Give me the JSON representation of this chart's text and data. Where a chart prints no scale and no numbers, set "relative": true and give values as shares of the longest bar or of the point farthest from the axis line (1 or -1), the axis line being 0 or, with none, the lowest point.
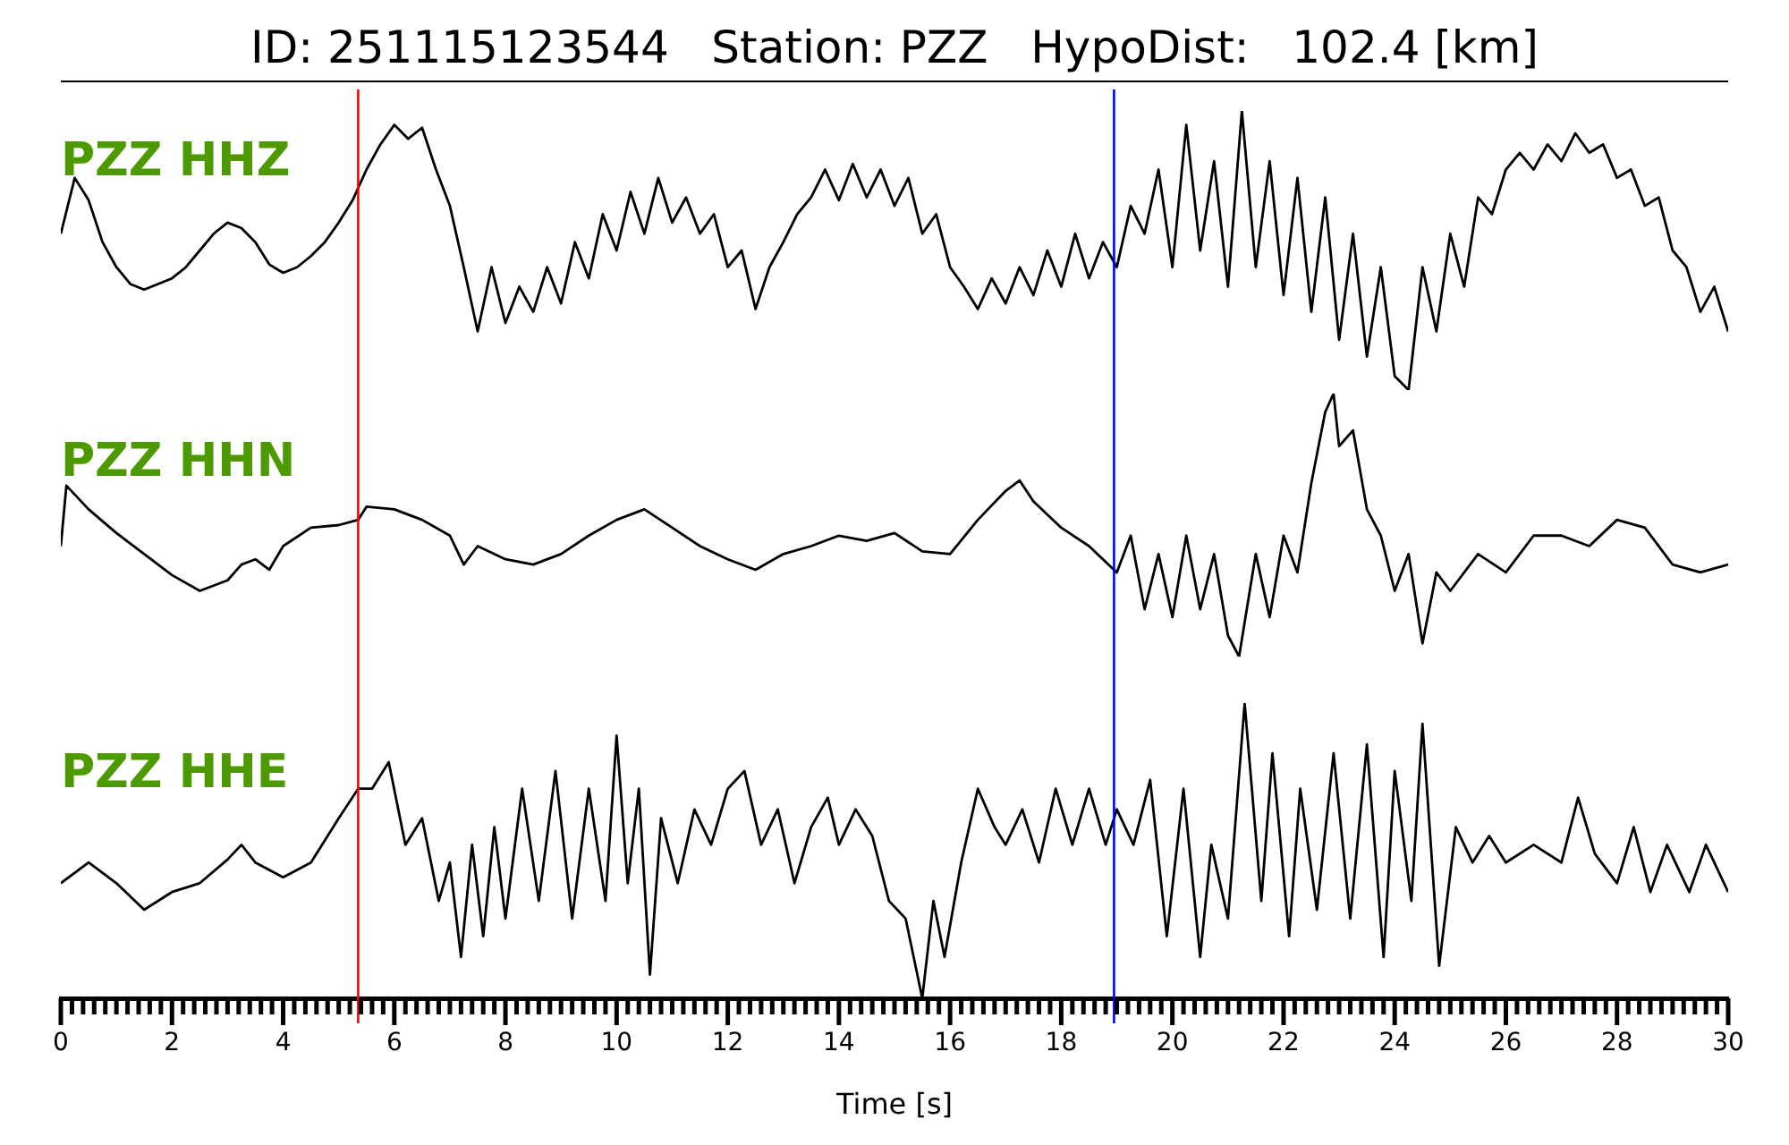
{
  "chart_data": [
    {
      "type": "line",
      "title": "ID: 251115123544   Station: PZZ   HypoDist:   102.4 [km]",
      "relative": true,
      "tick_labels": false,
      "xlim": [
        0,
        30
      ],
      "x": [
        0,
        0.25,
        0.5,
        0.75,
        1,
        1.25,
        1.5,
        1.75,
        2,
        2.25,
        2.5,
        2.75,
        3,
        3.25,
        3.5,
        3.75,
        4,
        4.25,
        4.5,
        4.75,
        5,
        5.25,
        5.5,
        5.75,
        6,
        6.25,
        6.5,
        6.75,
        7,
        7.25,
        7.5,
        7.75,
        8,
        8.25,
        8.5,
        8.75,
        9,
        9.25,
        9.5,
        9.75,
        10,
        10.25,
        10.5,
        10.75,
        11,
        11.25,
        11.5,
        11.75,
        12,
        12.25,
        12.5,
        12.75,
        13,
        13.25,
        13.5,
        13.75,
        14,
        14.25,
        14.5,
        14.75,
        15,
        15.25,
        15.5,
        15.75,
        16,
        16.25,
        16.5,
        16.75,
        17,
        17.25,
        17.5,
        17.75,
        18,
        18.25,
        18.5,
        18.75,
        19,
        19.25,
        19.5,
        19.75,
        20,
        20.25,
        20.5,
        20.75,
        21,
        21.25,
        21.5,
        21.75,
        22,
        22.25,
        22.5,
        22.75,
        23,
        23.25,
        23.5,
        23.75,
        24,
        24.25,
        24.5,
        24.75,
        25,
        25.25,
        25.5,
        25.75,
        26,
        26.25,
        26.5,
        26.75,
        27,
        27.25,
        27.5,
        27.75,
        28,
        28.25,
        28.5,
        28.75,
        29,
        29.25,
        29.5,
        29.75,
        30
      ],
      "series": [
        {
          "name": "PZZ HHZ",
          "color": "#000000",
          "values": [
            0.56,
            0.76,
            0.68,
            0.53,
            0.44,
            0.38,
            0.36,
            0.38,
            0.4,
            0.44,
            0.5,
            0.56,
            0.6,
            0.58,
            0.53,
            0.45,
            0.42,
            0.44,
            0.48,
            0.53,
            0.6,
            0.68,
            0.79,
            0.88,
            0.95,
            0.9,
            0.94,
            0.79,
            0.66,
            0.44,
            0.21,
            0.44,
            0.24,
            0.37,
            0.28,
            0.44,
            0.31,
            0.53,
            0.4,
            0.63,
            0.5,
            0.71,
            0.56,
            0.76,
            0.6,
            0.69,
            0.56,
            0.63,
            0.44,
            0.5,
            0.29,
            0.44,
            0.53,
            0.63,
            0.69,
            0.79,
            0.68,
            0.81,
            0.69,
            0.79,
            0.66,
            0.76,
            0.56,
            0.63,
            0.44,
            0.37,
            0.29,
            0.4,
            0.31,
            0.44,
            0.34,
            0.5,
            0.37,
            0.56,
            0.4,
            0.53,
            0.44,
            0.66,
            0.56,
            0.79,
            0.44,
            0.95,
            0.5,
            0.82,
            0.37,
            1,
            0.44,
            0.82,
            0.34,
            0.76,
            0.28,
            0.69,
            0.18,
            0.56,
            0.12,
            0.44,
            0.05,
            0,
            0.44,
            0.21,
            0.56,
            0.37,
            0.69,
            0.63,
            0.79,
            0.85,
            0.79,
            0.88,
            0.82,
            0.92,
            0.85,
            0.88,
            0.76,
            0.79,
            0.66,
            0.69,
            0.5,
            0.44,
            0.28,
            0.37,
            0.21
          ]
        }
      ],
      "ref_lines": [
        {
          "axis": "x",
          "value": 5.35,
          "color": "#ff0000"
        },
        {
          "axis": "x",
          "value": 18.95,
          "color": "#0000ff"
        }
      ]
    },
    {
      "type": "line",
      "relative": true,
      "tick_labels": false,
      "xlim": [
        0,
        30
      ],
      "x": [
        0,
        0.1,
        0.5,
        1,
        1.5,
        2,
        2.5,
        3,
        3.25,
        3.5,
        3.75,
        4,
        4.5,
        5,
        5.35,
        5.5,
        6,
        6.5,
        7,
        7.25,
        7.5,
        8,
        8.5,
        9,
        9.5,
        10,
        10.5,
        11,
        11.5,
        12,
        12.5,
        13,
        13.5,
        14,
        14.5,
        15,
        15.5,
        16,
        16.5,
        17,
        17.25,
        17.5,
        18,
        18.5,
        19,
        19.25,
        19.5,
        19.75,
        20,
        20.25,
        20.5,
        20.75,
        21,
        21.2,
        21.5,
        21.75,
        22,
        22.25,
        22.5,
        22.75,
        22.9,
        23,
        23.25,
        23.5,
        23.75,
        24,
        24.25,
        24.5,
        24.75,
        25,
        25.5,
        26,
        26.5,
        27,
        27.5,
        28,
        28.5,
        29,
        29.5,
        30
      ],
      "series": [
        {
          "name": "PZZ HHN",
          "color": "#000000",
          "values": [
            0.42,
            0.65,
            0.56,
            0.47,
            0.39,
            0.31,
            0.25,
            0.29,
            0.35,
            0.37,
            0.33,
            0.42,
            0.49,
            0.5,
            0.52,
            0.57,
            0.56,
            0.52,
            0.46,
            0.35,
            0.42,
            0.37,
            0.35,
            0.39,
            0.46,
            0.52,
            0.56,
            0.49,
            0.42,
            0.37,
            0.33,
            0.39,
            0.42,
            0.46,
            0.44,
            0.47,
            0.4,
            0.39,
            0.52,
            0.63,
            0.67,
            0.59,
            0.49,
            0.42,
            0.32,
            0.46,
            0.18,
            0.39,
            0.15,
            0.46,
            0.18,
            0.39,
            0.08,
            0,
            0.39,
            0.15,
            0.46,
            0.32,
            0.66,
            0.93,
            1,
            0.8,
            0.86,
            0.56,
            0.46,
            0.25,
            0.39,
            0.05,
            0.32,
            0.25,
            0.39,
            0.32,
            0.46,
            0.46,
            0.42,
            0.52,
            0.49,
            0.35,
            0.32,
            0.35
          ]
        }
      ],
      "ref_lines": [
        {
          "axis": "x",
          "value": 5.35,
          "color": "#ff0000"
        },
        {
          "axis": "x",
          "value": 18.95,
          "color": "#0000ff"
        }
      ]
    },
    {
      "type": "line",
      "relative": true,
      "xlabel": "Time [s]",
      "xlim": [
        0,
        30
      ],
      "xticks": [
        0,
        {
          "value": 0.2,
          "label": null
        },
        {
          "value": 0.4,
          "label": null
        },
        {
          "value": 0.6,
          "label": null
        },
        {
          "value": 0.8,
          "label": null
        },
        {
          "value": 1,
          "label": null
        },
        {
          "value": 1.2,
          "label": null
        },
        {
          "value": 1.4,
          "label": null
        },
        {
          "value": 1.6,
          "label": null
        },
        {
          "value": 1.8,
          "label": null
        },
        2,
        {
          "value": 2.2,
          "label": null
        },
        {
          "value": 2.4,
          "label": null
        },
        {
          "value": 2.6,
          "label": null
        },
        {
          "value": 2.8,
          "label": null
        },
        {
          "value": 3,
          "label": null
        },
        {
          "value": 3.2,
          "label": null
        },
        {
          "value": 3.4,
          "label": null
        },
        {
          "value": 3.6,
          "label": null
        },
        {
          "value": 3.8,
          "label": null
        },
        4,
        {
          "value": 4.2,
          "label": null
        },
        {
          "value": 4.4,
          "label": null
        },
        {
          "value": 4.6,
          "label": null
        },
        {
          "value": 4.8,
          "label": null
        },
        {
          "value": 5,
          "label": null
        },
        {
          "value": 5.2,
          "label": null
        },
        {
          "value": 5.4,
          "label": null
        },
        {
          "value": 5.6,
          "label": null
        },
        {
          "value": 5.8,
          "label": null
        },
        6,
        {
          "value": 6.2,
          "label": null
        },
        {
          "value": 6.4,
          "label": null
        },
        {
          "value": 6.6,
          "label": null
        },
        {
          "value": 6.8,
          "label": null
        },
        {
          "value": 7,
          "label": null
        },
        {
          "value": 7.2,
          "label": null
        },
        {
          "value": 7.4,
          "label": null
        },
        {
          "value": 7.6,
          "label": null
        },
        {
          "value": 7.8,
          "label": null
        },
        8,
        {
          "value": 8.2,
          "label": null
        },
        {
          "value": 8.4,
          "label": null
        },
        {
          "value": 8.6,
          "label": null
        },
        {
          "value": 8.8,
          "label": null
        },
        {
          "value": 9,
          "label": null
        },
        {
          "value": 9.2,
          "label": null
        },
        {
          "value": 9.4,
          "label": null
        },
        {
          "value": 9.6,
          "label": null
        },
        {
          "value": 9.8,
          "label": null
        },
        10,
        {
          "value": 10.2,
          "label": null
        },
        {
          "value": 10.4,
          "label": null
        },
        {
          "value": 10.6,
          "label": null
        },
        {
          "value": 10.8,
          "label": null
        },
        {
          "value": 11,
          "label": null
        },
        {
          "value": 11.2,
          "label": null
        },
        {
          "value": 11.4,
          "label": null
        },
        {
          "value": 11.6,
          "label": null
        },
        {
          "value": 11.8,
          "label": null
        },
        12,
        {
          "value": 12.2,
          "label": null
        },
        {
          "value": 12.4,
          "label": null
        },
        {
          "value": 12.6,
          "label": null
        },
        {
          "value": 12.8,
          "label": null
        },
        {
          "value": 13,
          "label": null
        },
        {
          "value": 13.2,
          "label": null
        },
        {
          "value": 13.4,
          "label": null
        },
        {
          "value": 13.6,
          "label": null
        },
        {
          "value": 13.8,
          "label": null
        },
        14,
        {
          "value": 14.2,
          "label": null
        },
        {
          "value": 14.4,
          "label": null
        },
        {
          "value": 14.6,
          "label": null
        },
        {
          "value": 14.8,
          "label": null
        },
        {
          "value": 15,
          "label": null
        },
        {
          "value": 15.2,
          "label": null
        },
        {
          "value": 15.4,
          "label": null
        },
        {
          "value": 15.6,
          "label": null
        },
        {
          "value": 15.8,
          "label": null
        },
        16,
        {
          "value": 16.2,
          "label": null
        },
        {
          "value": 16.4,
          "label": null
        },
        {
          "value": 16.6,
          "label": null
        },
        {
          "value": 16.8,
          "label": null
        },
        {
          "value": 17,
          "label": null
        },
        {
          "value": 17.2,
          "label": null
        },
        {
          "value": 17.4,
          "label": null
        },
        {
          "value": 17.6,
          "label": null
        },
        {
          "value": 17.8,
          "label": null
        },
        18,
        {
          "value": 18.2,
          "label": null
        },
        {
          "value": 18.4,
          "label": null
        },
        {
          "value": 18.6,
          "label": null
        },
        {
          "value": 18.8,
          "label": null
        },
        {
          "value": 19,
          "label": null
        },
        {
          "value": 19.2,
          "label": null
        },
        {
          "value": 19.4,
          "label": null
        },
        {
          "value": 19.6,
          "label": null
        },
        {
          "value": 19.8,
          "label": null
        },
        20,
        {
          "value": 20.2,
          "label": null
        },
        {
          "value": 20.4,
          "label": null
        },
        {
          "value": 20.6,
          "label": null
        },
        {
          "value": 20.8,
          "label": null
        },
        {
          "value": 21,
          "label": null
        },
        {
          "value": 21.2,
          "label": null
        },
        {
          "value": 21.4,
          "label": null
        },
        {
          "value": 21.6,
          "label": null
        },
        {
          "value": 21.8,
          "label": null
        },
        22,
        {
          "value": 22.2,
          "label": null
        },
        {
          "value": 22.4,
          "label": null
        },
        {
          "value": 22.6,
          "label": null
        },
        {
          "value": 22.8,
          "label": null
        },
        {
          "value": 23,
          "label": null
        },
        {
          "value": 23.2,
          "label": null
        },
        {
          "value": 23.4,
          "label": null
        },
        {
          "value": 23.6,
          "label": null
        },
        {
          "value": 23.8,
          "label": null
        },
        24,
        {
          "value": 24.2,
          "label": null
        },
        {
          "value": 24.4,
          "label": null
        },
        {
          "value": 24.6,
          "label": null
        },
        {
          "value": 24.8,
          "label": null
        },
        {
          "value": 25,
          "label": null
        },
        {
          "value": 25.2,
          "label": null
        },
        {
          "value": 25.4,
          "label": null
        },
        {
          "value": 25.6,
          "label": null
        },
        {
          "value": 25.8,
          "label": null
        },
        26,
        {
          "value": 26.2,
          "label": null
        },
        {
          "value": 26.4,
          "label": null
        },
        {
          "value": 26.6,
          "label": null
        },
        {
          "value": 26.8,
          "label": null
        },
        {
          "value": 27,
          "label": null
        },
        {
          "value": 27.2,
          "label": null
        },
        {
          "value": 27.4,
          "label": null
        },
        {
          "value": 27.6,
          "label": null
        },
        {
          "value": 27.8,
          "label": null
        },
        28,
        {
          "value": 28.2,
          "label": null
        },
        {
          "value": 28.4,
          "label": null
        },
        {
          "value": 28.6,
          "label": null
        },
        {
          "value": 28.8,
          "label": null
        },
        {
          "value": 29,
          "label": null
        },
        {
          "value": 29.2,
          "label": null
        },
        {
          "value": 29.4,
          "label": null
        },
        {
          "value": 29.6,
          "label": null
        },
        {
          "value": 29.8,
          "label": null
        },
        30
      ],
      "x": [
        0,
        0.5,
        1,
        1.5,
        2,
        2.5,
        3,
        3.25,
        3.5,
        4,
        4.5,
        5,
        5.35,
        5.6,
        5.9,
        6.2,
        6.5,
        6.8,
        7,
        7.2,
        7.4,
        7.6,
        7.8,
        8,
        8.3,
        8.6,
        8.9,
        9.2,
        9.5,
        9.8,
        10,
        10.2,
        10.4,
        10.6,
        10.8,
        11.1,
        11.4,
        11.7,
        12,
        12.3,
        12.6,
        12.9,
        13.2,
        13.5,
        13.8,
        14,
        14.3,
        14.6,
        14.9,
        15.2,
        15.5,
        15.7,
        15.9,
        16.2,
        16.5,
        16.8,
        17,
        17.3,
        17.6,
        17.9,
        18.2,
        18.5,
        18.8,
        19,
        19.3,
        19.6,
        19.9,
        20.2,
        20.5,
        20.7,
        21,
        21.3,
        21.6,
        21.8,
        22.1,
        22.3,
        22.6,
        22.9,
        23.2,
        23.5,
        23.8,
        24,
        24.3,
        24.5,
        24.8,
        25.1,
        25.4,
        25.7,
        26,
        26.5,
        27,
        27.3,
        27.6,
        28,
        28.3,
        28.6,
        28.9,
        29.3,
        29.6,
        30
      ],
      "series": [
        {
          "name": "PZZ HHE",
          "color": "#000000",
          "values": [
            0.39,
            0.46,
            0.39,
            0.3,
            0.36,
            0.39,
            0.47,
            0.52,
            0.46,
            0.41,
            0.46,
            0.61,
            0.71,
            0.71,
            0.8,
            0.52,
            0.61,
            0.33,
            0.46,
            0.14,
            0.52,
            0.21,
            0.58,
            0.27,
            0.71,
            0.33,
            0.77,
            0.27,
            0.71,
            0.33,
            0.89,
            0.39,
            0.71,
            0.08,
            0.61,
            0.39,
            0.64,
            0.52,
            0.71,
            0.77,
            0.52,
            0.64,
            0.39,
            0.58,
            0.68,
            0.52,
            0.64,
            0.55,
            0.33,
            0.27,
            0,
            0.33,
            0.14,
            0.46,
            0.71,
            0.58,
            0.52,
            0.64,
            0.46,
            0.71,
            0.52,
            0.71,
            0.52,
            0.64,
            0.52,
            0.74,
            0.21,
            0.71,
            0.14,
            0.52,
            0.27,
            1,
            0.33,
            0.83,
            0.21,
            0.71,
            0.3,
            0.83,
            0.27,
            0.86,
            0.14,
            0.77,
            0.33,
            0.93,
            0.11,
            0.58,
            0.46,
            0.55,
            0.46,
            0.52,
            0.46,
            0.68,
            0.49,
            0.39,
            0.58,
            0.36,
            0.52,
            0.36,
            0.52,
            0.36
          ]
        }
      ],
      "ref_lines": [
        {
          "axis": "x",
          "value": 5.35,
          "color": "#ff0000"
        },
        {
          "axis": "x",
          "value": 18.95,
          "color": "#0000ff"
        }
      ]
    }
  ]
}
